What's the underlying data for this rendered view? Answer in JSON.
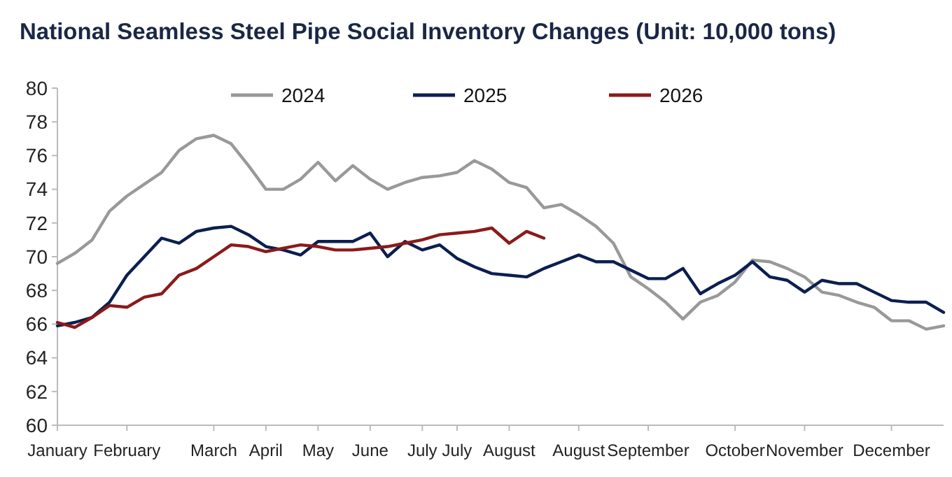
{
  "chart_data": {
    "type": "line",
    "title": "National Seamless Steel Pipe Social Inventory Changes (Unit: 10,000 tons)",
    "categories": [
      "January",
      null,
      null,
      null,
      "February",
      null,
      null,
      null,
      null,
      "March",
      null,
      null,
      "April",
      null,
      null,
      "May",
      null,
      null,
      "June",
      null,
      null,
      "July",
      null,
      "July",
      null,
      null,
      "August",
      null,
      null,
      null,
      "August",
      null,
      null,
      null,
      "September",
      null,
      null,
      null,
      null,
      "October",
      null,
      null,
      null,
      "November",
      null,
      null,
      null,
      null,
      "December",
      null,
      null,
      null
    ],
    "ylim": [
      60,
      80
    ],
    "yticks": [
      60,
      62,
      64,
      66,
      68,
      70,
      72,
      74,
      76,
      78,
      80
    ],
    "legend": "top",
    "grid": false,
    "marker": "none",
    "line_style": "solid",
    "series": [
      {
        "name": "2024",
        "color": "#999999",
        "values": [
          69.6,
          70.2,
          71.0,
          72.7,
          73.6,
          74.3,
          75.0,
          76.3,
          77.0,
          77.2,
          76.7,
          75.4,
          74.0,
          74.0,
          74.6,
          75.6,
          74.5,
          75.4,
          74.6,
          74.0,
          74.4,
          74.7,
          74.8,
          75.0,
          75.7,
          75.2,
          74.4,
          74.1,
          72.9,
          73.1,
          72.5,
          71.8,
          70.8,
          68.8,
          68.1,
          67.3,
          66.3,
          67.3,
          67.7,
          68.5,
          69.8,
          69.7,
          69.3,
          68.8,
          67.9,
          67.7,
          67.3,
          67.0,
          66.2,
          66.2,
          65.7,
          65.9
        ]
      },
      {
        "name": "2025",
        "color": "#0b1f4f",
        "values": [
          65.9,
          66.1,
          66.4,
          67.3,
          68.9,
          70.0,
          71.1,
          70.8,
          71.5,
          71.7,
          71.8,
          71.3,
          70.6,
          70.4,
          70.1,
          70.9,
          70.9,
          70.9,
          71.4,
          70.0,
          70.9,
          70.4,
          70.7,
          69.9,
          69.4,
          69.0,
          68.9,
          68.8,
          69.3,
          69.7,
          70.1,
          69.7,
          69.7,
          69.2,
          68.7,
          68.7,
          69.3,
          67.8,
          68.4,
          68.9,
          69.7,
          68.8,
          68.6,
          67.9,
          68.6,
          68.4,
          68.4,
          67.9,
          67.4,
          67.3,
          67.3,
          66.7
        ]
      },
      {
        "name": "2026",
        "color": "#8b1a1a",
        "values": [
          66.1,
          65.8,
          66.4,
          67.1,
          67.0,
          67.6,
          67.8,
          68.9,
          69.3,
          70.0,
          70.7,
          70.6,
          70.3,
          70.5,
          70.7,
          70.6,
          70.4,
          70.4,
          70.5,
          70.6,
          70.8,
          71.0,
          71.3,
          71.4,
          71.5,
          71.7,
          70.8,
          71.5,
          71.1,
          null,
          null,
          null,
          null,
          null,
          null,
          null,
          null,
          null,
          null,
          null,
          null,
          null,
          null,
          null,
          null,
          null,
          null,
          null,
          null,
          null,
          null,
          null
        ]
      }
    ]
  }
}
